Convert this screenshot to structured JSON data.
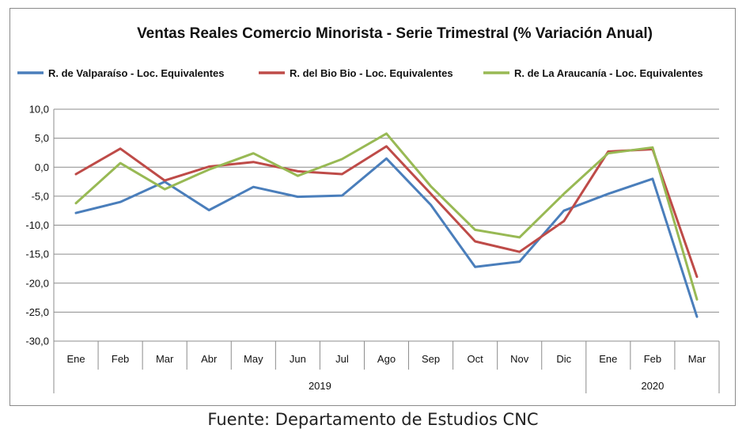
{
  "source_text": "Fuente: Departamento de Estudios CNC",
  "chart_data": {
    "type": "line",
    "title": "Ventas Reales Comercio Minorista - Serie Trimestral (% Variación Anual)",
    "xlabel": "",
    "ylabel": "",
    "ylim": [
      -30,
      10
    ],
    "yticks": [
      "10,0",
      "5,0",
      "0,0",
      "-5,0",
      "-10,0",
      "-15,0",
      "-20,0",
      "-25,0",
      "-30,0"
    ],
    "grid": true,
    "legend_position": "top",
    "categories": [
      "Ene",
      "Feb",
      "Mar",
      "Abr",
      "May",
      "Jun",
      "Jul",
      "Ago",
      "Sep",
      "Oct",
      "Nov",
      "Dic",
      "Ene",
      "Feb",
      "Mar"
    ],
    "groups": [
      {
        "label": "2019",
        "start": 0,
        "end": 11
      },
      {
        "label": "2020",
        "start": 12,
        "end": 14
      }
    ],
    "series": [
      {
        "name": "R. de Valparaíso - Loc. Equivalentes",
        "color": "#4a7ebb",
        "values": [
          -7.9,
          -6.0,
          -2.5,
          -7.4,
          -3.4,
          -5.1,
          -4.9,
          1.5,
          -6.5,
          -17.2,
          -16.3,
          -7.5,
          -4.6,
          -2.0,
          -25.8
        ]
      },
      {
        "name": "R. del Bio Bio - Loc. Equivalentes",
        "color": "#be4b48",
        "values": [
          -1.2,
          3.2,
          -2.3,
          0.1,
          0.9,
          -0.7,
          -1.2,
          3.6,
          -4.6,
          -12.8,
          -14.6,
          -9.3,
          2.7,
          3.1,
          -18.9
        ]
      },
      {
        "name": "R. de La Araucanía - Loc. Equivalentes",
        "color": "#98b954",
        "values": [
          -6.2,
          0.7,
          -3.8,
          -0.4,
          2.4,
          -1.5,
          1.4,
          5.8,
          -3.3,
          -10.8,
          -12.1,
          -4.6,
          2.4,
          3.4,
          -22.8
        ]
      }
    ]
  }
}
